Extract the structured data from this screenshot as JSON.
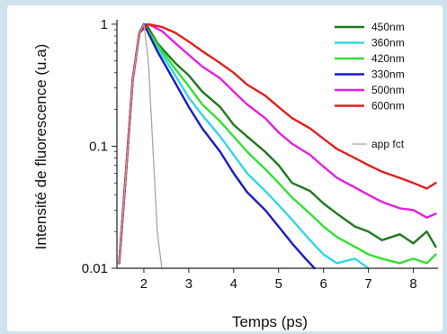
{
  "chart_data": {
    "type": "line",
    "xlabel": "Temps (ps)",
    "ylabel": "Intensité de fluorescence (u.a)",
    "log_y": true,
    "xlim": [
      1.4,
      8.55
    ],
    "ylim": [
      0.01,
      1.05
    ],
    "x_ticks": [
      2,
      3,
      4,
      5,
      6,
      7,
      8
    ],
    "x_tick_labels": [
      "2",
      "3",
      "4",
      "5",
      "6",
      "7",
      "8"
    ],
    "y_ticks": [
      0.01,
      0.1,
      1
    ],
    "y_tick_labels": [
      "0.01",
      "0.1",
      "1"
    ],
    "legend_position": "top-right",
    "series": [
      {
        "name": "450nm",
        "color": "#1e7a1e",
        "points": [
          [
            1.45,
            0.011
          ],
          [
            1.6,
            0.06
          ],
          [
            1.75,
            0.35
          ],
          [
            1.9,
            0.85
          ],
          [
            2.05,
            1.0
          ],
          [
            2.3,
            0.7
          ],
          [
            2.7,
            0.48
          ],
          [
            3.0,
            0.38
          ],
          [
            3.3,
            0.28
          ],
          [
            3.7,
            0.21
          ],
          [
            4.0,
            0.15
          ],
          [
            4.3,
            0.12
          ],
          [
            4.7,
            0.09
          ],
          [
            5.0,
            0.07
          ],
          [
            5.3,
            0.05
          ],
          [
            5.7,
            0.043
          ],
          [
            6.0,
            0.034
          ],
          [
            6.3,
            0.028
          ],
          [
            6.7,
            0.022
          ],
          [
            7.0,
            0.02
          ],
          [
            7.3,
            0.017
          ],
          [
            7.7,
            0.019
          ],
          [
            8.0,
            0.016
          ],
          [
            8.3,
            0.02
          ],
          [
            8.5,
            0.015
          ]
        ]
      },
      {
        "name": "360nm",
        "color": "#33d6e6",
        "points": [
          [
            1.45,
            0.011
          ],
          [
            1.6,
            0.06
          ],
          [
            1.75,
            0.35
          ],
          [
            1.9,
            0.85
          ],
          [
            2.0,
            1.0
          ],
          [
            2.3,
            0.65
          ],
          [
            2.7,
            0.38
          ],
          [
            3.0,
            0.25
          ],
          [
            3.3,
            0.18
          ],
          [
            3.7,
            0.12
          ],
          [
            4.0,
            0.085
          ],
          [
            4.3,
            0.06
          ],
          [
            4.7,
            0.043
          ],
          [
            5.0,
            0.033
          ],
          [
            5.3,
            0.025
          ],
          [
            5.7,
            0.017
          ],
          [
            6.0,
            0.013
          ],
          [
            6.3,
            0.011
          ],
          [
            6.7,
            0.012
          ],
          [
            7.0,
            0.01
          ]
        ]
      },
      {
        "name": "420nm",
        "color": "#33e033",
        "points": [
          [
            1.45,
            0.011
          ],
          [
            1.6,
            0.06
          ],
          [
            1.75,
            0.35
          ],
          [
            1.9,
            0.85
          ],
          [
            2.0,
            1.0
          ],
          [
            2.3,
            0.68
          ],
          [
            2.7,
            0.43
          ],
          [
            3.0,
            0.31
          ],
          [
            3.3,
            0.22
          ],
          [
            3.7,
            0.16
          ],
          [
            4.0,
            0.12
          ],
          [
            4.3,
            0.09
          ],
          [
            4.7,
            0.065
          ],
          [
            5.0,
            0.05
          ],
          [
            5.3,
            0.038
          ],
          [
            5.7,
            0.028
          ],
          [
            6.0,
            0.022
          ],
          [
            6.3,
            0.018
          ],
          [
            6.7,
            0.015
          ],
          [
            7.0,
            0.013
          ],
          [
            7.3,
            0.012
          ],
          [
            7.7,
            0.011
          ],
          [
            8.0,
            0.012
          ],
          [
            8.3,
            0.011
          ],
          [
            8.5,
            0.013
          ]
        ]
      },
      {
        "name": "330nm",
        "color": "#1a1acc",
        "points": [
          [
            1.45,
            0.011
          ],
          [
            1.6,
            0.06
          ],
          [
            1.75,
            0.35
          ],
          [
            1.9,
            0.85
          ],
          [
            2.0,
            1.0
          ],
          [
            2.3,
            0.6
          ],
          [
            2.7,
            0.33
          ],
          [
            3.0,
            0.21
          ],
          [
            3.3,
            0.14
          ],
          [
            3.7,
            0.09
          ],
          [
            4.0,
            0.06
          ],
          [
            4.3,
            0.042
          ],
          [
            4.7,
            0.03
          ],
          [
            5.0,
            0.022
          ],
          [
            5.3,
            0.016
          ],
          [
            5.6,
            0.012
          ],
          [
            5.8,
            0.01
          ]
        ]
      },
      {
        "name": "500nm",
        "color": "#e020e0",
        "points": [
          [
            1.45,
            0.011
          ],
          [
            1.6,
            0.06
          ],
          [
            1.75,
            0.35
          ],
          [
            1.9,
            0.85
          ],
          [
            2.1,
            1.0
          ],
          [
            2.4,
            0.88
          ],
          [
            2.7,
            0.7
          ],
          [
            3.0,
            0.56
          ],
          [
            3.3,
            0.45
          ],
          [
            3.7,
            0.36
          ],
          [
            4.0,
            0.28
          ],
          [
            4.3,
            0.22
          ],
          [
            4.7,
            0.17
          ],
          [
            5.0,
            0.13
          ],
          [
            5.3,
            0.105
          ],
          [
            5.7,
            0.085
          ],
          [
            6.0,
            0.068
          ],
          [
            6.3,
            0.055
          ],
          [
            6.7,
            0.046
          ],
          [
            7.0,
            0.04
          ],
          [
            7.3,
            0.035
          ],
          [
            7.7,
            0.031
          ],
          [
            8.0,
            0.03
          ],
          [
            8.3,
            0.026
          ],
          [
            8.5,
            0.028
          ]
        ]
      },
      {
        "name": "600nm",
        "color": "#e02020",
        "points": [
          [
            1.45,
            0.011
          ],
          [
            1.6,
            0.06
          ],
          [
            1.75,
            0.35
          ],
          [
            1.9,
            0.85
          ],
          [
            2.1,
            1.0
          ],
          [
            2.4,
            0.95
          ],
          [
            2.7,
            0.85
          ],
          [
            3.0,
            0.72
          ],
          [
            3.3,
            0.6
          ],
          [
            3.7,
            0.48
          ],
          [
            4.0,
            0.4
          ],
          [
            4.3,
            0.32
          ],
          [
            4.7,
            0.26
          ],
          [
            5.0,
            0.21
          ],
          [
            5.3,
            0.17
          ],
          [
            5.7,
            0.14
          ],
          [
            6.0,
            0.115
          ],
          [
            6.3,
            0.095
          ],
          [
            6.7,
            0.08
          ],
          [
            7.0,
            0.07
          ],
          [
            7.3,
            0.062
          ],
          [
            7.7,
            0.055
          ],
          [
            8.0,
            0.05
          ],
          [
            8.3,
            0.045
          ],
          [
            8.5,
            0.05
          ]
        ]
      },
      {
        "name": "app fct",
        "color": "#a8a8a8",
        "points": [
          [
            1.45,
            0.011
          ],
          [
            1.6,
            0.06
          ],
          [
            1.75,
            0.35
          ],
          [
            1.9,
            0.85
          ],
          [
            2.0,
            1.0
          ],
          [
            2.1,
            0.5
          ],
          [
            2.2,
            0.1
          ],
          [
            2.3,
            0.02
          ],
          [
            2.4,
            0.01
          ]
        ]
      }
    ]
  }
}
